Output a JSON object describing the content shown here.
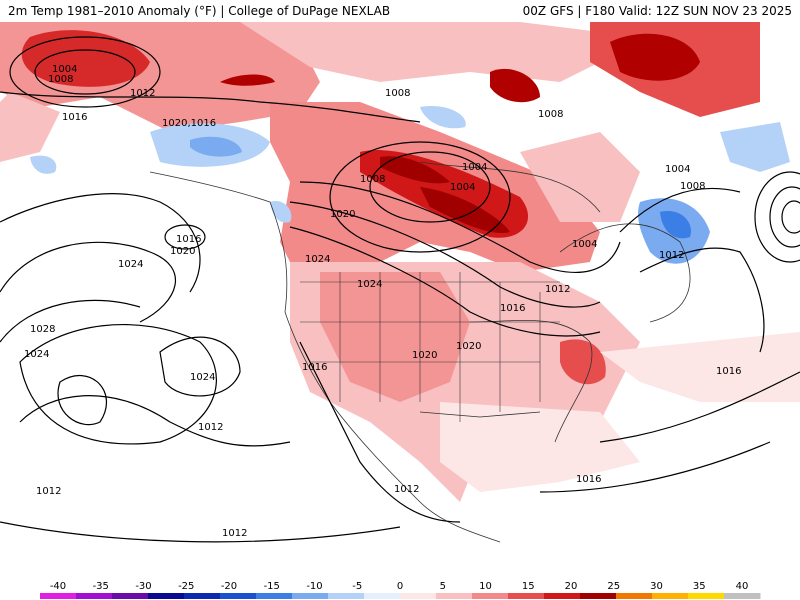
{
  "header": {
    "title_left": "2m Temp 1981–2010 Anomaly (°F) | College of DuPage NEXLAB",
    "title_right": "00Z GFS | F180 Valid: 12Z SUN NOV 23 2025"
  },
  "map": {
    "description_units": "°F",
    "isobar_labels": [
      "1004",
      "1008",
      "1012",
      "1020,1016",
      "1008",
      "1008",
      "1004",
      "1004",
      "1012",
      "1008",
      "1004",
      "1004",
      "1020",
      "1016",
      "1020",
      "1024",
      "1024",
      "1024",
      "1016",
      "1012",
      "1028",
      "1024",
      "1024",
      "1020",
      "1016",
      "1020",
      "1016",
      "1012",
      "1012",
      "1012",
      "1016",
      "1008",
      "1012",
      "1016"
    ]
  },
  "legend": {
    "ticks": [
      "-40",
      "-35",
      "-30",
      "-25",
      "-20",
      "-15",
      "-10",
      "-5",
      "0",
      "5",
      "10",
      "15",
      "20",
      "25",
      "30",
      "35",
      "40"
    ],
    "colors": [
      "#e020e0",
      "#a010d0",
      "#6a0aa8",
      "#0a0a90",
      "#0a28b0",
      "#1b50d0",
      "#3a7ee6",
      "#7aaaf0",
      "#b4d2f8",
      "#e6f0fc",
      "#fce6e6",
      "#f8c0c0",
      "#f28a8a",
      "#e64e4e",
      "#d01818",
      "#a00000",
      "#f07800",
      "#ffb000",
      "#ffd800",
      "#c0c0c0"
    ]
  }
}
